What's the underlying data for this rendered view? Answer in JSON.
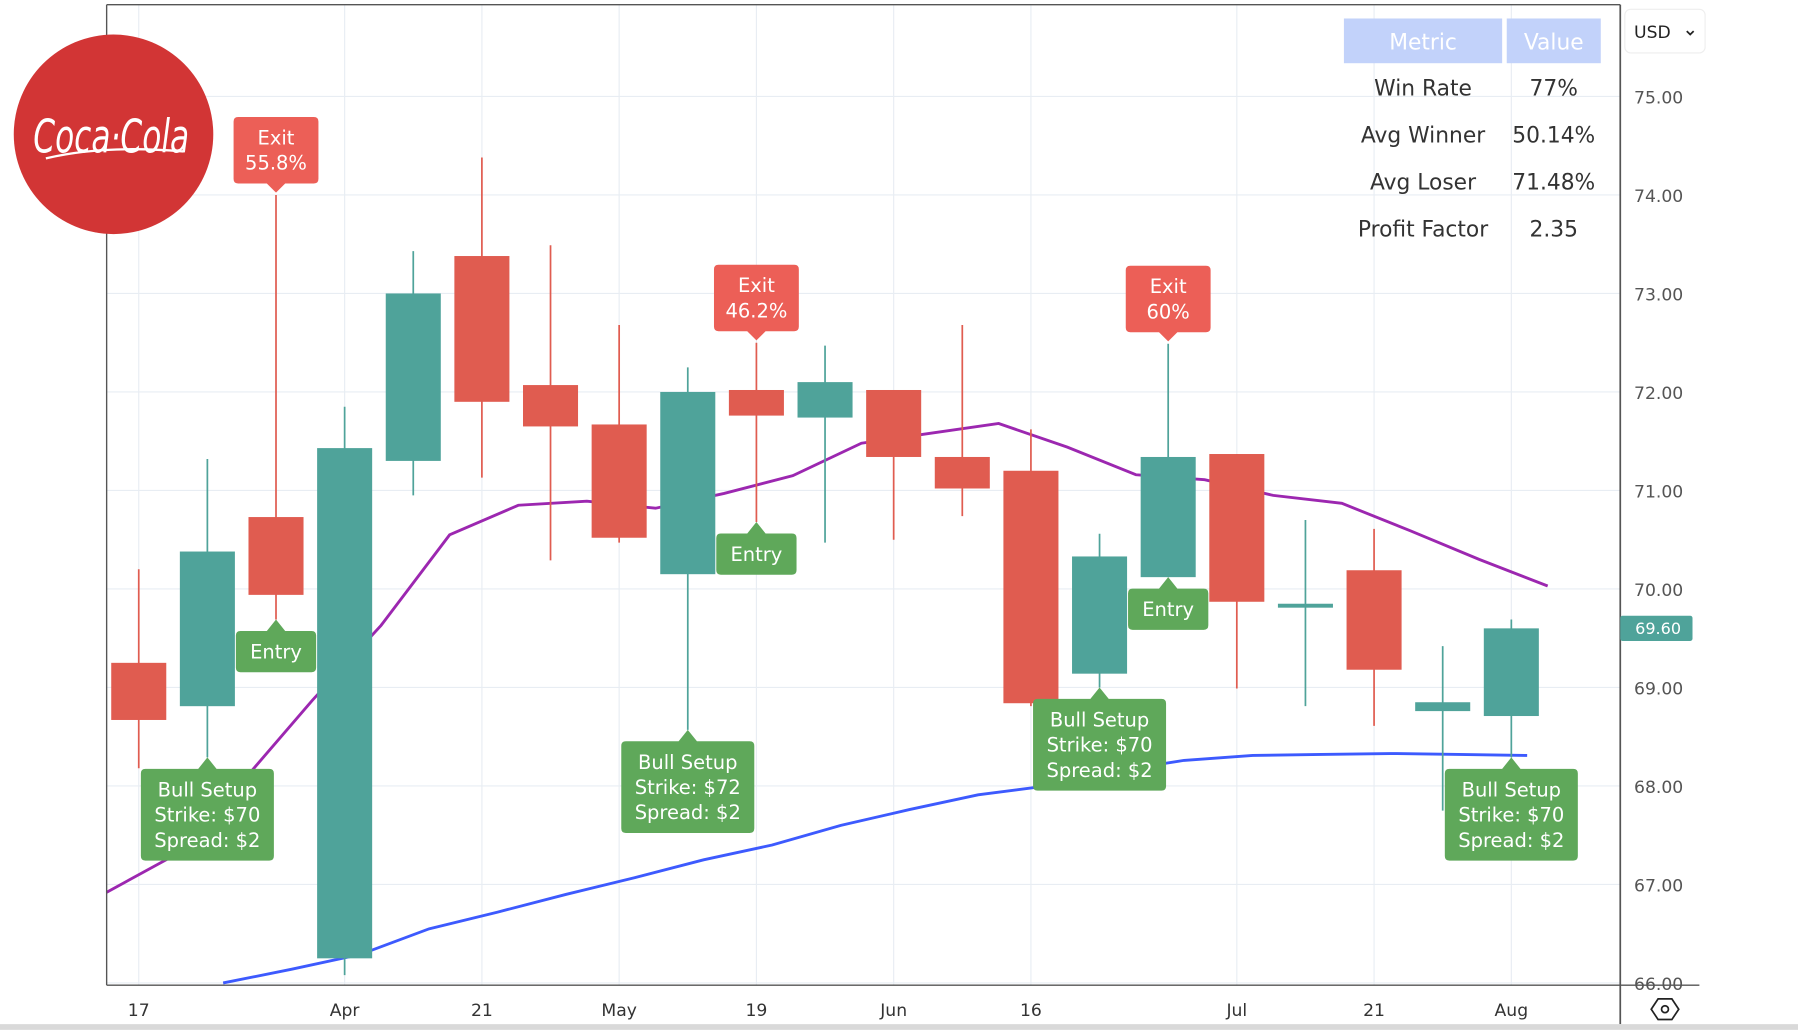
{
  "chart_data": {
    "type": "candlestick",
    "symbol_logo": "Coca-Cola",
    "currency": "USD",
    "last_price": "69.60",
    "ylim": [
      66,
      75.2
    ],
    "y_ticks": [
      "75.00",
      "74.00",
      "73.00",
      "72.00",
      "71.00",
      "70.00",
      "69.00",
      "68.00",
      "67.00",
      "66.00"
    ],
    "x_tick_labels": [
      {
        "index": 0,
        "label": "17"
      },
      {
        "index": 3,
        "label": "Apr"
      },
      {
        "index": 5,
        "label": "21"
      },
      {
        "index": 7,
        "label": "May"
      },
      {
        "index": 9,
        "label": "19"
      },
      {
        "index": 11,
        "label": "Jun"
      },
      {
        "index": 13,
        "label": "16"
      },
      {
        "index": 16,
        "label": "Jul"
      },
      {
        "index": 18,
        "label": "21"
      },
      {
        "index": 20,
        "label": "Aug"
      }
    ],
    "candles": [
      {
        "o": 69.25,
        "h": 70.2,
        "l": 68.18,
        "c": 68.67
      },
      {
        "o": 68.81,
        "h": 71.32,
        "l": 68.29,
        "c": 70.38
      },
      {
        "o": 70.73,
        "h": 74.0,
        "l": 69.69,
        "c": 69.94
      },
      {
        "o": 66.25,
        "h": 71.85,
        "l": 66.08,
        "c": 71.43
      },
      {
        "o": 71.3,
        "h": 73.43,
        "l": 70.95,
        "c": 73.0
      },
      {
        "o": 73.38,
        "h": 74.38,
        "l": 71.13,
        "c": 71.9
      },
      {
        "o": 72.07,
        "h": 73.49,
        "l": 70.29,
        "c": 71.65
      },
      {
        "o": 71.67,
        "h": 72.68,
        "l": 70.47,
        "c": 70.52
      },
      {
        "o": 70.15,
        "h": 72.25,
        "l": 68.57,
        "c": 72.0
      },
      {
        "o": 72.02,
        "h": 72.5,
        "l": 70.68,
        "c": 71.76
      },
      {
        "o": 71.74,
        "h": 72.47,
        "l": 70.47,
        "c": 72.1
      },
      {
        "o": 72.02,
        "h": 72.02,
        "l": 70.5,
        "c": 71.34
      },
      {
        "o": 71.34,
        "h": 72.68,
        "l": 70.74,
        "c": 71.02
      },
      {
        "o": 71.2,
        "h": 71.62,
        "l": 68.81,
        "c": 68.84
      },
      {
        "o": 69.14,
        "h": 70.56,
        "l": 69.0,
        "c": 70.33
      },
      {
        "o": 70.12,
        "h": 72.49,
        "l": 70.12,
        "c": 71.34
      },
      {
        "o": 71.37,
        "h": 71.37,
        "l": 68.99,
        "c": 69.87
      },
      {
        "o": 69.81,
        "h": 70.7,
        "l": 68.81,
        "c": 69.85
      },
      {
        "o": 70.19,
        "h": 70.61,
        "l": 68.61,
        "c": 69.18
      },
      {
        "o": 68.76,
        "h": 69.42,
        "l": 67.75,
        "c": 68.85
      },
      {
        "o": 68.71,
        "h": 69.69,
        "l": 68.29,
        "c": 69.6
      }
    ],
    "series": [
      {
        "name": "ma-fast",
        "color": "#9c27b0",
        "start_index": -0.47,
        "values": [
          66.92,
          67.3,
          68.06,
          68.87,
          69.63,
          70.55,
          70.85,
          70.89,
          70.82,
          70.97,
          71.15,
          71.48,
          71.58,
          71.68,
          71.44,
          71.16,
          71.11,
          70.95,
          70.87,
          70.59,
          70.3,
          70.03
        ]
      },
      {
        "name": "ma-slow",
        "color": "#3d5afe",
        "start_index": 1.23,
        "values": [
          66.0,
          66.14,
          66.29,
          66.55,
          66.72,
          66.9,
          67.07,
          67.25,
          67.4,
          67.6,
          67.76,
          67.91,
          68.0,
          68.15,
          68.26,
          68.31,
          68.32,
          68.33,
          68.32,
          68.31
        ]
      }
    ],
    "annotations": [
      {
        "type": "setup",
        "index": 1,
        "price": 68.29,
        "lines": [
          "Bull Setup",
          "Strike: $70",
          "Spread: $2"
        ]
      },
      {
        "type": "setup",
        "index": 8,
        "price": 68.57,
        "lines": [
          "Bull Setup",
          "Strike: $72",
          "Spread: $2"
        ]
      },
      {
        "type": "setup",
        "index": 14,
        "price": 69.0,
        "lines": [
          "Bull Setup",
          "Strike: $70",
          "Spread: $2"
        ]
      },
      {
        "type": "setup",
        "index": 20,
        "price": 68.29,
        "lines": [
          "Bull Setup",
          "Strike: $70",
          "Spread: $2"
        ]
      },
      {
        "type": "entry",
        "index": 2,
        "price": 69.69,
        "lines": [
          "Entry"
        ]
      },
      {
        "type": "entry",
        "index": 9,
        "price": 70.68,
        "lines": [
          "Entry"
        ]
      },
      {
        "type": "entry",
        "index": 15,
        "price": 70.12,
        "lines": [
          "Entry"
        ]
      },
      {
        "type": "exit",
        "index": 2,
        "price": 74.0,
        "lines": [
          "Exit",
          "55.8%"
        ]
      },
      {
        "type": "exit",
        "index": 9,
        "price": 72.5,
        "lines": [
          "Exit",
          "46.2%"
        ]
      },
      {
        "type": "exit",
        "index": 15,
        "price": 72.49,
        "lines": [
          "Exit",
          "60%"
        ]
      }
    ],
    "colors": {
      "up": "#4fa39a",
      "down": "#e05c50",
      "setup": "#5fa85a",
      "entry": "#5fa85a",
      "exit": "#ec5f57",
      "logo": "#d23535",
      "table_header": "#c2d2fa"
    }
  },
  "stats_table": {
    "headers": [
      "Metric",
      "Value"
    ],
    "rows": [
      [
        "Win Rate",
        "77%"
      ],
      [
        "Avg Winner",
        "50.14%"
      ],
      [
        "Avg Loser",
        "71.48%"
      ],
      [
        "Profit Factor",
        "2.35"
      ]
    ]
  }
}
